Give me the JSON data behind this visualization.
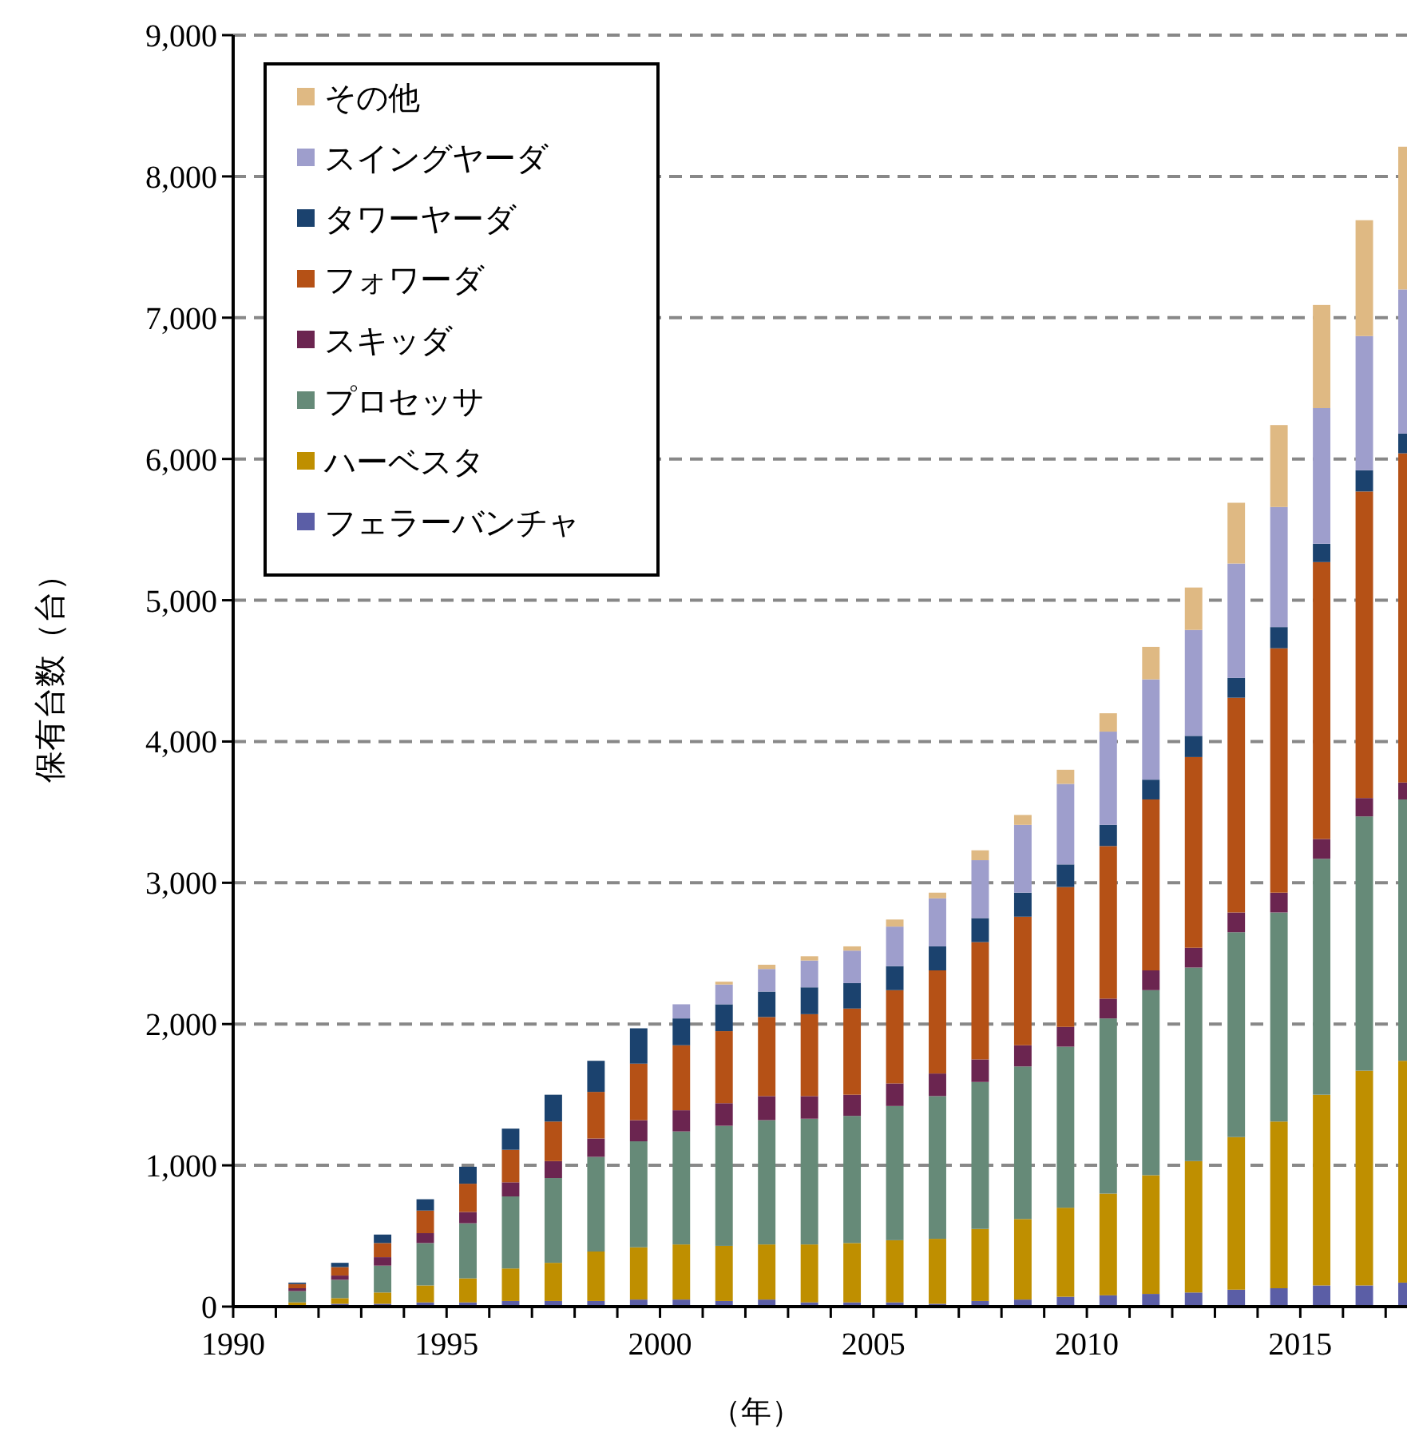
{
  "chart_data": {
    "type": "bar",
    "stacked": true,
    "xlabel": "（年）",
    "ylabel": "保有台数（台）",
    "x": [
      1991.5,
      1992.5,
      1993.5,
      1994.5,
      1995.5,
      1996.5,
      1997.5,
      1998.5,
      1999.5,
      2000.5,
      2001.5,
      2002.5,
      2003.5,
      2004.5,
      2005.5,
      2006.5,
      2007.5,
      2008.5,
      2009.5,
      2010.5,
      2011.5,
      2012.5,
      2013.5,
      2014.5,
      2015.5,
      2016.5,
      2017.5
    ],
    "series": [
      {
        "name": "フェラーバンチャ",
        "color": "#5b5ea6",
        "values": [
          10,
          20,
          20,
          30,
          30,
          40,
          40,
          40,
          50,
          50,
          40,
          50,
          30,
          30,
          30,
          20,
          40,
          50,
          70,
          80,
          90,
          100,
          120,
          130,
          150,
          150,
          170
        ]
      },
      {
        "name": "ハーベスタ",
        "color": "#bf8f00",
        "values": [
          20,
          40,
          80,
          120,
          170,
          230,
          270,
          350,
          370,
          390,
          390,
          390,
          410,
          420,
          440,
          460,
          510,
          570,
          630,
          720,
          840,
          930,
          1080,
          1180,
          1350,
          1520,
          1570
        ]
      },
      {
        "name": "プロセッサ",
        "color": "#668a78",
        "values": [
          80,
          130,
          190,
          300,
          390,
          510,
          600,
          670,
          750,
          800,
          850,
          880,
          890,
          900,
          950,
          1010,
          1040,
          1080,
          1140,
          1240,
          1310,
          1370,
          1450,
          1480,
          1670,
          1800,
          1850
        ]
      },
      {
        "name": "スキッダ",
        "color": "#6b2550",
        "values": [
          20,
          30,
          60,
          70,
          80,
          100,
          120,
          130,
          150,
          150,
          160,
          170,
          160,
          150,
          160,
          160,
          160,
          150,
          140,
          140,
          140,
          140,
          140,
          140,
          140,
          130,
          120
        ]
      },
      {
        "name": "フォワーダ",
        "color": "#b55116",
        "values": [
          30,
          60,
          100,
          160,
          200,
          230,
          280,
          330,
          400,
          460,
          510,
          560,
          580,
          610,
          660,
          730,
          830,
          910,
          990,
          1080,
          1210,
          1350,
          1520,
          1730,
          1960,
          2170,
          2330
        ]
      },
      {
        "name": "タワーヤーダ",
        "color": "#1b426e",
        "values": [
          10,
          30,
          60,
          80,
          120,
          150,
          190,
          220,
          250,
          190,
          190,
          180,
          190,
          180,
          170,
          170,
          170,
          170,
          160,
          150,
          140,
          150,
          140,
          150,
          130,
          150,
          140
        ]
      },
      {
        "name": "スイングヤーダ",
        "color": "#9e9ecc",
        "values": [
          0,
          0,
          0,
          0,
          0,
          0,
          0,
          0,
          0,
          100,
          140,
          160,
          190,
          230,
          280,
          340,
          410,
          480,
          570,
          660,
          710,
          750,
          810,
          850,
          960,
          950,
          1020
        ]
      },
      {
        "name": "その他",
        "color": "#dfb983",
        "values": [
          0,
          0,
          0,
          0,
          0,
          0,
          0,
          0,
          0,
          0,
          20,
          30,
          30,
          30,
          50,
          40,
          70,
          70,
          100,
          130,
          230,
          300,
          430,
          580,
          730,
          820,
          1010
        ]
      }
    ],
    "xlim": [
      1990,
      2017.5
    ],
    "xticks": [
      {
        "value": 1990,
        "label": "1990"
      },
      {
        "value": 1991,
        "label": null
      },
      {
        "value": 1992,
        "label": null
      },
      {
        "value": 1993,
        "label": null
      },
      {
        "value": 1994,
        "label": null
      },
      {
        "value": 1995,
        "label": "1995"
      },
      {
        "value": 1996,
        "label": null
      },
      {
        "value": 1997,
        "label": null
      },
      {
        "value": 1998,
        "label": null
      },
      {
        "value": 1999,
        "label": null
      },
      {
        "value": 2000,
        "label": "2000"
      },
      {
        "value": 2001,
        "label": null
      },
      {
        "value": 2002,
        "label": null
      },
      {
        "value": 2003,
        "label": null
      },
      {
        "value": 2004,
        "label": null
      },
      {
        "value": 2005,
        "label": "2005"
      },
      {
        "value": 2006,
        "label": null
      },
      {
        "value": 2007,
        "label": null
      },
      {
        "value": 2008,
        "label": null
      },
      {
        "value": 2009,
        "label": null
      },
      {
        "value": 2010,
        "label": "2010"
      },
      {
        "value": 2011,
        "label": null
      },
      {
        "value": 2012,
        "label": null
      },
      {
        "value": 2013,
        "label": null
      },
      {
        "value": 2014,
        "label": null
      },
      {
        "value": 2015,
        "label": "2015"
      },
      {
        "value": 2016,
        "label": null
      },
      {
        "value": 2017,
        "label": null
      }
    ],
    "ylim": [
      0,
      9000
    ],
    "yticks": [
      0,
      {
        "value": 1000,
        "label": "1,000"
      },
      {
        "value": 2000,
        "label": "2,000"
      },
      {
        "value": 3000,
        "label": "3,000"
      },
      {
        "value": 4000,
        "label": "4,000"
      },
      {
        "value": 5000,
        "label": "5,000"
      },
      {
        "value": 6000,
        "label": "6,000"
      },
      {
        "value": 7000,
        "label": "7,000"
      },
      {
        "value": 8000,
        "label": "8,000"
      },
      {
        "value": 9000,
        "label": "9,000"
      }
    ],
    "grid": "y",
    "legend": "top left"
  }
}
